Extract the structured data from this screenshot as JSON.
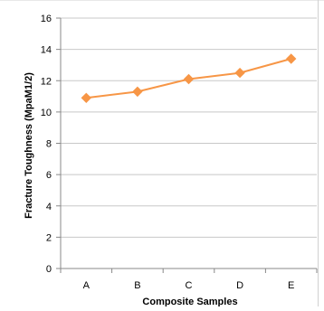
{
  "chart_data": {
    "type": "line",
    "categories": [
      "A",
      "B",
      "C",
      "D",
      "E"
    ],
    "series": [
      {
        "values": [
          10.9,
          11.3,
          12.1,
          12.5,
          13.4
        ]
      }
    ],
    "xlabel": "Composite Samples",
    "ylabel": "Fracture Toughness (MpaM1/2)",
    "ylim": [
      0,
      16
    ],
    "yticks": [
      0,
      2,
      4,
      6,
      8,
      10,
      12,
      14,
      16
    ],
    "grid": true,
    "legend": "none",
    "line_color": "#F79646",
    "marker": "diamond"
  }
}
